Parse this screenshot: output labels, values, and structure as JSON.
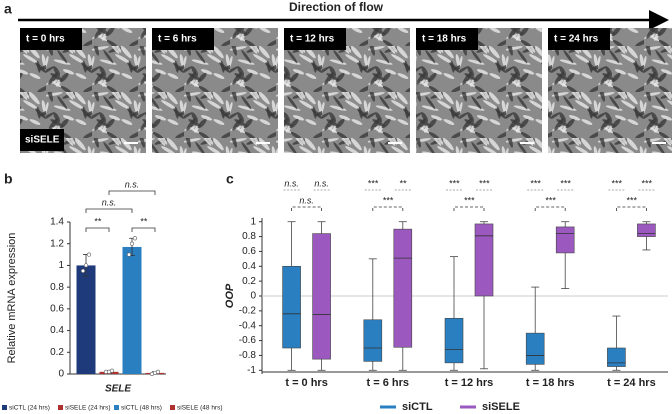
{
  "panel_a": {
    "label": "a",
    "title": "Direction of flow",
    "frames": [
      "t = 0 hrs",
      "t = 6 hrs",
      "t = 12 hrs",
      "t = 18 hrs",
      "t = 24 hrs"
    ],
    "condition": "siSELE"
  },
  "chart_data": [
    {
      "type": "bar",
      "label": "b",
      "ylabel": "Relative mRNA expression",
      "xlabel": "SELE",
      "categories": [
        "siCTL (24 hrs)",
        "siSELE (24 hrs)",
        "siCTL (48 hrs)",
        "siSELE (48 hrs)"
      ],
      "values": [
        1.0,
        0.02,
        1.17,
        0.01
      ],
      "errors": [
        0.1,
        0.01,
        0.08,
        0.01
      ],
      "points": [
        [
          0.95,
          1.0,
          1.1
        ],
        [
          0.02,
          0.02,
          0.03
        ],
        [
          1.1,
          1.2,
          1.25
        ],
        [
          0.0,
          0.01,
          0.02
        ]
      ],
      "colors": [
        "#1f3a7a",
        "#b03030",
        "#2a7fc0",
        "#b03030"
      ],
      "annotations": [
        "**",
        "**",
        "n.s.",
        "n.s."
      ],
      "ylim": [
        0,
        1.4
      ],
      "yticks": [
        0,
        0.2,
        0.4,
        0.6,
        0.8,
        1,
        1.2,
        1.4
      ]
    },
    {
      "type": "box",
      "label": "c",
      "ylabel": "OOP",
      "categories": [
        "t = 0 hrs",
        "t = 6 hrs",
        "t = 12 hrs",
        "t = 18 hrs",
        "t = 24 hrs"
      ],
      "series": [
        {
          "name": "siCTL",
          "color": "#2a7fc0",
          "whisker_low": [
            -1,
            -1,
            -1,
            -1,
            -1
          ],
          "q1": [
            -0.7,
            -0.88,
            -0.9,
            -0.92,
            -0.95
          ],
          "median": [
            -0.24,
            -0.7,
            -0.72,
            -0.8,
            -0.9
          ],
          "q3": [
            0.4,
            -0.32,
            -0.3,
            -0.5,
            -0.7
          ],
          "whisker_high": [
            1,
            0.5,
            0.53,
            0.12,
            -0.27
          ],
          "significance": [
            "n.s.",
            "***",
            "***",
            "***",
            "***"
          ]
        },
        {
          "name": "siSELE",
          "color": "#9b59c0",
          "whisker_low": [
            -1,
            -1,
            -0.98,
            0.1,
            0.62
          ],
          "q1": [
            -0.85,
            -0.69,
            0,
            0.58,
            0.8
          ],
          "median": [
            -0.25,
            0.51,
            0.81,
            0.84,
            0.84
          ],
          "q3": [
            0.84,
            0.9,
            0.97,
            0.93,
            0.97
          ],
          "whisker_high": [
            1,
            1,
            1,
            1,
            1
          ],
          "significance": [
            "n.s.",
            "**",
            "***",
            "***",
            "***"
          ]
        }
      ],
      "pair_significance": [
        "n.s.",
        "***",
        "***",
        "***",
        "***"
      ],
      "ylim": [
        -1.05,
        1.05
      ],
      "yticks": [
        1,
        0.8,
        0.6,
        0.4,
        0.2,
        0,
        -0.2,
        -0.4,
        -0.6,
        -0.8,
        -1
      ],
      "zero_line": true
    }
  ]
}
